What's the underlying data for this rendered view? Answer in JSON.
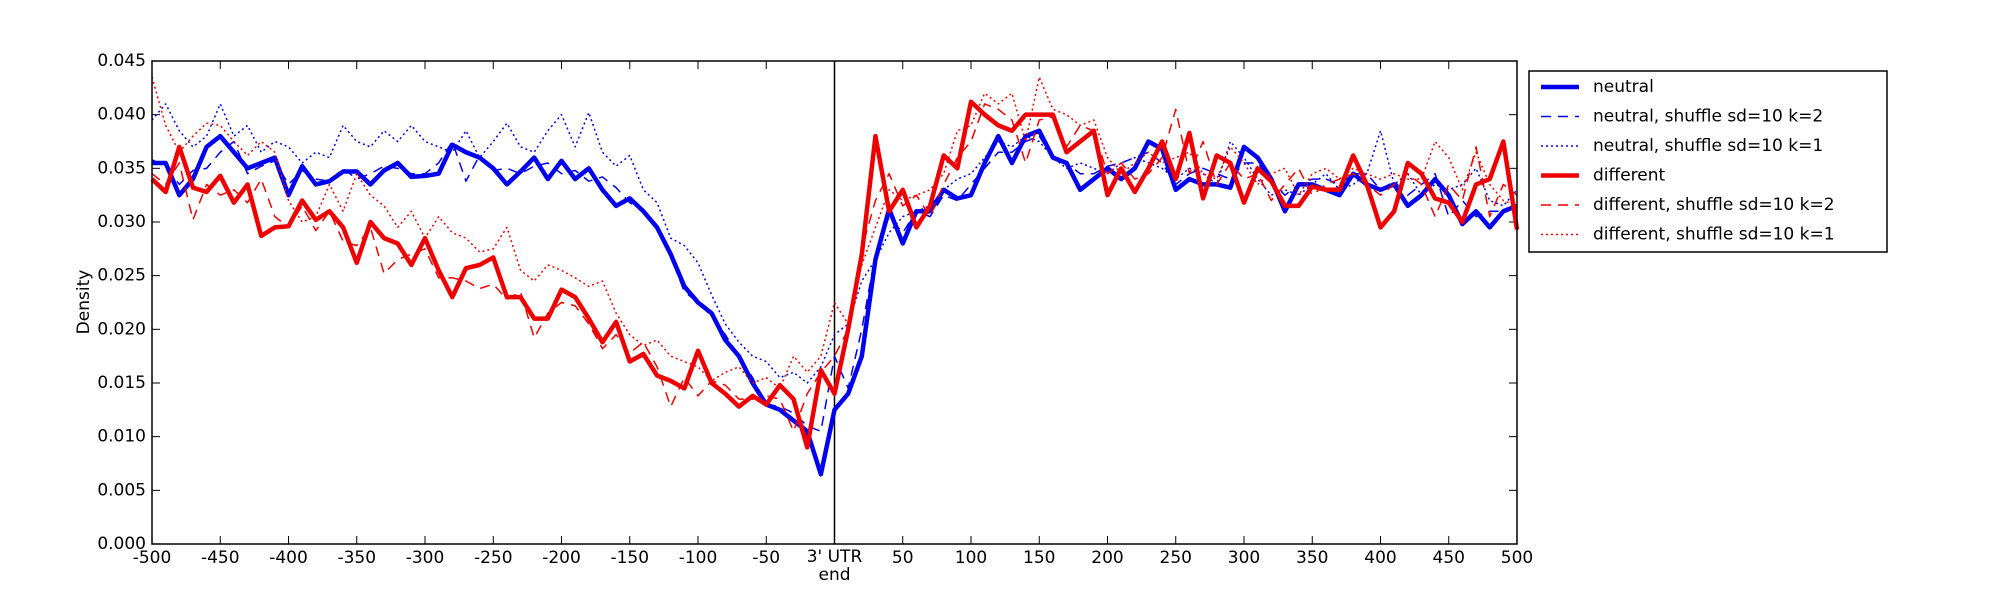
{
  "chart_data": {
    "type": "line",
    "y_label": "Density",
    "x": [
      -500,
      -490,
      -480,
      -470,
      -460,
      -450,
      -440,
      -430,
      -420,
      -410,
      -400,
      -390,
      -380,
      -370,
      -360,
      -350,
      -340,
      -330,
      -320,
      -310,
      -300,
      -290,
      -280,
      -270,
      -260,
      -250,
      -240,
      -230,
      -220,
      -210,
      -200,
      -190,
      -180,
      -170,
      -160,
      -150,
      -140,
      -130,
      -120,
      -110,
      -100,
      -90,
      -80,
      -70,
      -60,
      -50,
      -40,
      -30,
      -20,
      -10,
      0,
      10,
      20,
      30,
      40,
      50,
      60,
      70,
      80,
      90,
      100,
      110,
      120,
      130,
      140,
      150,
      160,
      170,
      180,
      190,
      200,
      210,
      220,
      230,
      240,
      250,
      260,
      270,
      280,
      290,
      300,
      310,
      320,
      330,
      340,
      350,
      360,
      370,
      380,
      390,
      400,
      410,
      420,
      430,
      440,
      450,
      460,
      470,
      480,
      490,
      500
    ],
    "series": [
      {
        "name": "neutral",
        "color": "#0000ee",
        "style": "solid",
        "values": [
          0.0355,
          0.0355,
          0.0325,
          0.034,
          0.037,
          0.038,
          0.0365,
          0.035,
          0.0355,
          0.036,
          0.0325,
          0.0352,
          0.0335,
          0.0338,
          0.0347,
          0.0347,
          0.0335,
          0.0348,
          0.0355,
          0.0342,
          0.0343,
          0.0345,
          0.0372,
          0.0365,
          0.036,
          0.035,
          0.0335,
          0.0347,
          0.036,
          0.034,
          0.0357,
          0.034,
          0.035,
          0.033,
          0.0315,
          0.0322,
          0.031,
          0.0295,
          0.027,
          0.024,
          0.0225,
          0.0215,
          0.019,
          0.0175,
          0.015,
          0.013,
          0.0125,
          0.0115,
          0.0105,
          0.0065,
          0.0125,
          0.014,
          0.0175,
          0.0265,
          0.0312,
          0.028,
          0.031,
          0.031,
          0.033,
          0.0322,
          0.0325,
          0.0355,
          0.038,
          0.0355,
          0.038,
          0.0385,
          0.036,
          0.0355,
          0.033,
          0.034,
          0.035,
          0.034,
          0.035,
          0.0375,
          0.0368,
          0.033,
          0.034,
          0.0335,
          0.0335,
          0.0332,
          0.037,
          0.036,
          0.034,
          0.031,
          0.0335,
          0.0335,
          0.033,
          0.0325,
          0.0345,
          0.0335,
          0.033,
          0.0335,
          0.0315,
          0.0325,
          0.034,
          0.0325,
          0.0298,
          0.031,
          0.0295,
          0.031,
          0.0315
        ]
      },
      {
        "name": "neutral, shuffle sd=10 k=2",
        "color": "#0000ee",
        "style": "dashed",
        "values": [
          0.0358,
          0.0352,
          0.0335,
          0.0348,
          0.035,
          0.0365,
          0.0375,
          0.0345,
          0.0352,
          0.0357,
          0.0335,
          0.0348,
          0.034,
          0.0338,
          0.035,
          0.034,
          0.0345,
          0.0352,
          0.035,
          0.0345,
          0.0345,
          0.0355,
          0.0375,
          0.0338,
          0.0362,
          0.0348,
          0.035,
          0.0345,
          0.0352,
          0.0355,
          0.0345,
          0.0348,
          0.0338,
          0.0342,
          0.0332,
          0.0318,
          0.031,
          0.0295,
          0.0268,
          0.0235,
          0.0225,
          0.0212,
          0.0195,
          0.0175,
          0.0155,
          0.013,
          0.0128,
          0.0122,
          0.011,
          0.0105,
          0.0175,
          0.0145,
          0.02,
          0.027,
          0.0305,
          0.029,
          0.031,
          0.0305,
          0.0325,
          0.032,
          0.0335,
          0.035,
          0.0365,
          0.0365,
          0.0375,
          0.038,
          0.036,
          0.0355,
          0.0345,
          0.0345,
          0.0352,
          0.0355,
          0.036,
          0.0365,
          0.0355,
          0.0335,
          0.0345,
          0.035,
          0.0345,
          0.034,
          0.0355,
          0.0355,
          0.0338,
          0.0325,
          0.0335,
          0.034,
          0.034,
          0.0335,
          0.0345,
          0.0345,
          0.033,
          0.0338,
          0.0325,
          0.0335,
          0.0345,
          0.0305,
          0.032,
          0.0305,
          0.031,
          0.031,
          0.0315
        ]
      },
      {
        "name": "neutral, shuffle sd=10 k=1",
        "color": "#0000ee",
        "style": "dotted",
        "values": [
          0.0395,
          0.041,
          0.0385,
          0.037,
          0.038,
          0.041,
          0.038,
          0.039,
          0.0365,
          0.0375,
          0.037,
          0.0355,
          0.0365,
          0.036,
          0.039,
          0.0375,
          0.037,
          0.0385,
          0.0375,
          0.039,
          0.0375,
          0.037,
          0.0365,
          0.0385,
          0.036,
          0.0375,
          0.0392,
          0.037,
          0.0365,
          0.0385,
          0.04,
          0.037,
          0.0402,
          0.0365,
          0.0352,
          0.0362,
          0.033,
          0.0318,
          0.0285,
          0.0278,
          0.0262,
          0.0232,
          0.0205,
          0.0188,
          0.0175,
          0.017,
          0.0155,
          0.016,
          0.015,
          0.0165,
          0.0195,
          0.0205,
          0.0245,
          0.0265,
          0.029,
          0.0305,
          0.031,
          0.0315,
          0.033,
          0.034,
          0.0345,
          0.036,
          0.0375,
          0.037,
          0.038,
          0.0375,
          0.036,
          0.035,
          0.0355,
          0.035,
          0.0345,
          0.0355,
          0.036,
          0.0355,
          0.035,
          0.034,
          0.035,
          0.0345,
          0.0335,
          0.0375,
          0.036,
          0.034,
          0.0325,
          0.033,
          0.0325,
          0.0335,
          0.0345,
          0.033,
          0.0335,
          0.0345,
          0.0385,
          0.0335,
          0.0345,
          0.0325,
          0.0335,
          0.033,
          0.0335,
          0.035,
          0.032,
          0.0315,
          0.033
        ]
      },
      {
        "name": "different",
        "color": "#ee0000",
        "style": "solid",
        "values": [
          0.034,
          0.0328,
          0.037,
          0.0332,
          0.0328,
          0.0343,
          0.0318,
          0.0335,
          0.0287,
          0.0295,
          0.0296,
          0.032,
          0.0302,
          0.031,
          0.0295,
          0.0262,
          0.03,
          0.0285,
          0.028,
          0.026,
          0.0285,
          0.0255,
          0.023,
          0.0257,
          0.026,
          0.0267,
          0.023,
          0.023,
          0.021,
          0.021,
          0.0237,
          0.023,
          0.021,
          0.0188,
          0.0207,
          0.017,
          0.0177,
          0.0157,
          0.0152,
          0.0145,
          0.018,
          0.015,
          0.014,
          0.0128,
          0.0138,
          0.013,
          0.0148,
          0.0135,
          0.009,
          0.0162,
          0.014,
          0.02,
          0.027,
          0.038,
          0.031,
          0.033,
          0.0295,
          0.0315,
          0.0362,
          0.035,
          0.0412,
          0.04,
          0.039,
          0.0385,
          0.04,
          0.04,
          0.04,
          0.0365,
          0.0375,
          0.0385,
          0.0325,
          0.035,
          0.0328,
          0.035,
          0.0375,
          0.034,
          0.0383,
          0.0322,
          0.0362,
          0.0355,
          0.0318,
          0.035,
          0.0338,
          0.0315,
          0.0315,
          0.0333,
          0.033,
          0.033,
          0.0362,
          0.0335,
          0.0295,
          0.031,
          0.0355,
          0.0345,
          0.0322,
          0.0318,
          0.03,
          0.0335,
          0.034,
          0.0375,
          0.0293
        ]
      },
      {
        "name": "different, shuffle sd=10 k=2",
        "color": "#ee0000",
        "style": "dashed",
        "values": [
          0.0345,
          0.0335,
          0.0355,
          0.0302,
          0.0335,
          0.0325,
          0.033,
          0.0318,
          0.034,
          0.0305,
          0.0295,
          0.0315,
          0.0292,
          0.031,
          0.0282,
          0.0278,
          0.0295,
          0.0252,
          0.0265,
          0.027,
          0.0275,
          0.0248,
          0.0248,
          0.0245,
          0.0238,
          0.0242,
          0.0228,
          0.0235,
          0.0192,
          0.0215,
          0.0225,
          0.0222,
          0.0205,
          0.0182,
          0.0195,
          0.0178,
          0.0188,
          0.0165,
          0.0128,
          0.0155,
          0.0138,
          0.0152,
          0.0148,
          0.0135,
          0.0135,
          0.0138,
          0.0135,
          0.0105,
          0.014,
          0.016,
          0.0175,
          0.02,
          0.0275,
          0.032,
          0.0345,
          0.0315,
          0.0325,
          0.0305,
          0.0335,
          0.036,
          0.0375,
          0.041,
          0.0405,
          0.0395,
          0.0355,
          0.0395,
          0.0398,
          0.037,
          0.039,
          0.0385,
          0.0345,
          0.0355,
          0.034,
          0.0345,
          0.036,
          0.0405,
          0.0345,
          0.0375,
          0.0335,
          0.0355,
          0.034,
          0.0345,
          0.032,
          0.0335,
          0.035,
          0.0325,
          0.0335,
          0.034,
          0.0345,
          0.0335,
          0.0325,
          0.0335,
          0.0345,
          0.0335,
          0.0305,
          0.0335,
          0.032,
          0.037,
          0.0305,
          0.0335,
          0.0325
        ]
      },
      {
        "name": "different, shuffle sd=10 k=1",
        "color": "#ee0000",
        "style": "dotted",
        "values": [
          0.0435,
          0.039,
          0.0365,
          0.038,
          0.0392,
          0.039,
          0.0375,
          0.0362,
          0.0375,
          0.0365,
          0.032,
          0.03,
          0.0305,
          0.0335,
          0.031,
          0.0345,
          0.0325,
          0.0315,
          0.0295,
          0.031,
          0.0285,
          0.0305,
          0.029,
          0.0285,
          0.0272,
          0.0275,
          0.0295,
          0.0255,
          0.0245,
          0.026,
          0.0255,
          0.0248,
          0.024,
          0.0245,
          0.0215,
          0.0195,
          0.0185,
          0.019,
          0.0175,
          0.017,
          0.0165,
          0.0152,
          0.016,
          0.0165,
          0.015,
          0.0155,
          0.0145,
          0.0175,
          0.016,
          0.0175,
          0.0225,
          0.0205,
          0.026,
          0.0295,
          0.033,
          0.032,
          0.0325,
          0.033,
          0.0345,
          0.0385,
          0.039,
          0.042,
          0.041,
          0.042,
          0.0375,
          0.0435,
          0.0405,
          0.04,
          0.039,
          0.0395,
          0.036,
          0.0345,
          0.0355,
          0.0365,
          0.0355,
          0.036,
          0.0365,
          0.0345,
          0.034,
          0.037,
          0.0355,
          0.0335,
          0.0345,
          0.035,
          0.0325,
          0.0345,
          0.035,
          0.034,
          0.035,
          0.0345,
          0.034,
          0.0345,
          0.034,
          0.034,
          0.0375,
          0.036,
          0.033,
          0.0365,
          0.0335,
          0.032,
          0.0315
        ]
      }
    ],
    "xlim": [
      -500,
      500
    ],
    "xticks": [
      -500,
      -450,
      -400,
      -350,
      -300,
      -250,
      -200,
      -150,
      -100,
      -50,
      {
        "value": 0,
        "label": "3' UTR end"
      },
      50,
      100,
      150,
      200,
      250,
      300,
      350,
      400,
      450,
      500
    ],
    "ylim": [
      0,
      0.045
    ],
    "yticks": [
      {
        "value": 0,
        "label": "0.000"
      },
      0.005,
      {
        "value": 0.01,
        "label": "0.010"
      },
      0.015,
      {
        "value": 0.02,
        "label": "0.020"
      },
      0.025,
      {
        "value": 0.03,
        "label": "0.030"
      },
      0.035,
      {
        "value": 0.04,
        "label": "0.040"
      },
      0.045
    ],
    "legend": "upper right outside"
  }
}
